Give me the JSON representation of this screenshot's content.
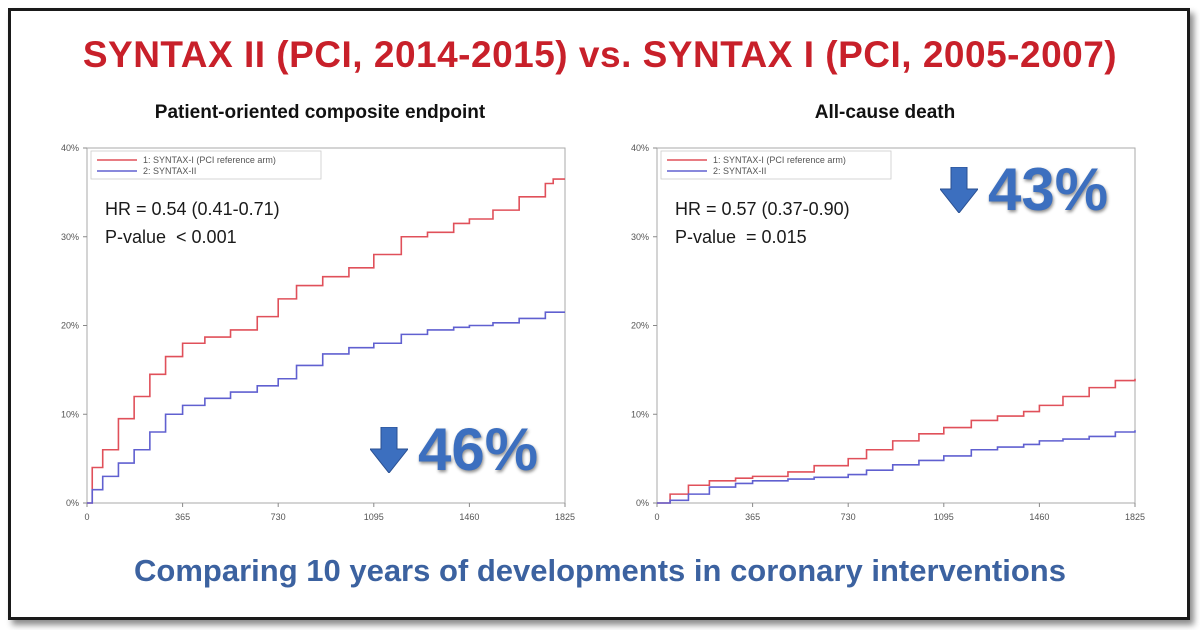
{
  "title": "SYNTAX II (PCI, 2014-2015) vs. SYNTAX I (PCI, 2005-2007)",
  "footer": "Comparing 10 years of developments in coronary interventions",
  "colors": {
    "title": "#c8202a",
    "footer": "#3c62a0",
    "accent": "#3c6fbf",
    "series1": "#e0505a",
    "series2": "#6060d0"
  },
  "chart_data": [
    {
      "type": "line",
      "title": "Patient-oriented composite endpoint",
      "xlabel": "",
      "ylabel": "",
      "xlim": [
        0,
        1825
      ],
      "ylim": [
        0,
        40
      ],
      "x_ticks": [
        "0",
        "365",
        "730",
        "1095",
        "1460",
        "1825"
      ],
      "y_ticks": [
        "0%",
        "10%",
        "20%",
        "30%",
        "40%"
      ],
      "legend": [
        "1: SYNTAX-I (PCI reference arm)",
        "2: SYNTAX-II"
      ],
      "legend_position": "top-left",
      "series": [
        {
          "name": "1: SYNTAX-I (PCI reference arm)",
          "color": "#e0505a",
          "x": [
            0,
            20,
            60,
            120,
            180,
            240,
            300,
            365,
            450,
            548,
            650,
            730,
            800,
            900,
            1000,
            1095,
            1200,
            1300,
            1400,
            1460,
            1550,
            1650,
            1750,
            1780,
            1825
          ],
          "y": [
            0,
            4,
            6,
            9.5,
            12,
            14.5,
            16.5,
            18,
            18.7,
            19.5,
            21,
            23,
            24.5,
            25.5,
            26.5,
            28,
            30,
            30.5,
            31.5,
            32,
            33,
            34.5,
            36,
            36.5,
            36.5
          ]
        },
        {
          "name": "2: SYNTAX-II",
          "color": "#6060d0",
          "x": [
            0,
            20,
            60,
            120,
            180,
            240,
            300,
            365,
            450,
            548,
            650,
            730,
            800,
            900,
            1000,
            1095,
            1200,
            1300,
            1400,
            1460,
            1550,
            1650,
            1750,
            1825
          ],
          "y": [
            0,
            1.5,
            3,
            4.5,
            6,
            8,
            10,
            11,
            11.8,
            12.5,
            13.2,
            14,
            15.5,
            16.8,
            17.5,
            18,
            19,
            19.5,
            19.8,
            20,
            20.3,
            20.8,
            21.5,
            21.5
          ]
        }
      ],
      "annotations": {
        "hr": "HR = 0.54 (0.41-0.71)",
        "p": "P-value  < 0.001",
        "reduction": "46%"
      }
    },
    {
      "type": "line",
      "title": "All-cause death",
      "xlabel": "",
      "ylabel": "",
      "xlim": [
        0,
        1825
      ],
      "ylim": [
        0,
        40
      ],
      "x_ticks": [
        "0",
        "365",
        "730",
        "1095",
        "1460",
        "1825"
      ],
      "y_ticks": [
        "0%",
        "10%",
        "20%",
        "30%",
        "40%"
      ],
      "legend": [
        "1: SYNTAX-I (PCI reference arm)",
        "2: SYNTAX-II"
      ],
      "legend_position": "top-left",
      "series": [
        {
          "name": "1: SYNTAX-I (PCI reference arm)",
          "color": "#e0505a",
          "x": [
            0,
            50,
            120,
            200,
            300,
            365,
            500,
            600,
            730,
            800,
            900,
            1000,
            1095,
            1200,
            1300,
            1400,
            1460,
            1550,
            1650,
            1750,
            1825
          ],
          "y": [
            0,
            1,
            2,
            2.5,
            2.8,
            3,
            3.5,
            4.2,
            5,
            6,
            7,
            7.8,
            8.5,
            9.3,
            9.8,
            10.3,
            11,
            12,
            13,
            13.8,
            14
          ]
        },
        {
          "name": "2: SYNTAX-II",
          "color": "#6060d0",
          "x": [
            0,
            50,
            120,
            200,
            300,
            365,
            500,
            600,
            730,
            800,
            900,
            1000,
            1095,
            1200,
            1300,
            1400,
            1460,
            1550,
            1650,
            1750,
            1825
          ],
          "y": [
            0,
            0.3,
            1,
            1.8,
            2.2,
            2.5,
            2.7,
            2.9,
            3.2,
            3.7,
            4.3,
            4.8,
            5.3,
            6,
            6.3,
            6.6,
            7,
            7.2,
            7.5,
            8,
            8.2
          ]
        }
      ],
      "annotations": {
        "hr": "HR = 0.57 (0.37-0.90)",
        "p": "P-value  = 0.015",
        "reduction": "43%"
      }
    }
  ]
}
